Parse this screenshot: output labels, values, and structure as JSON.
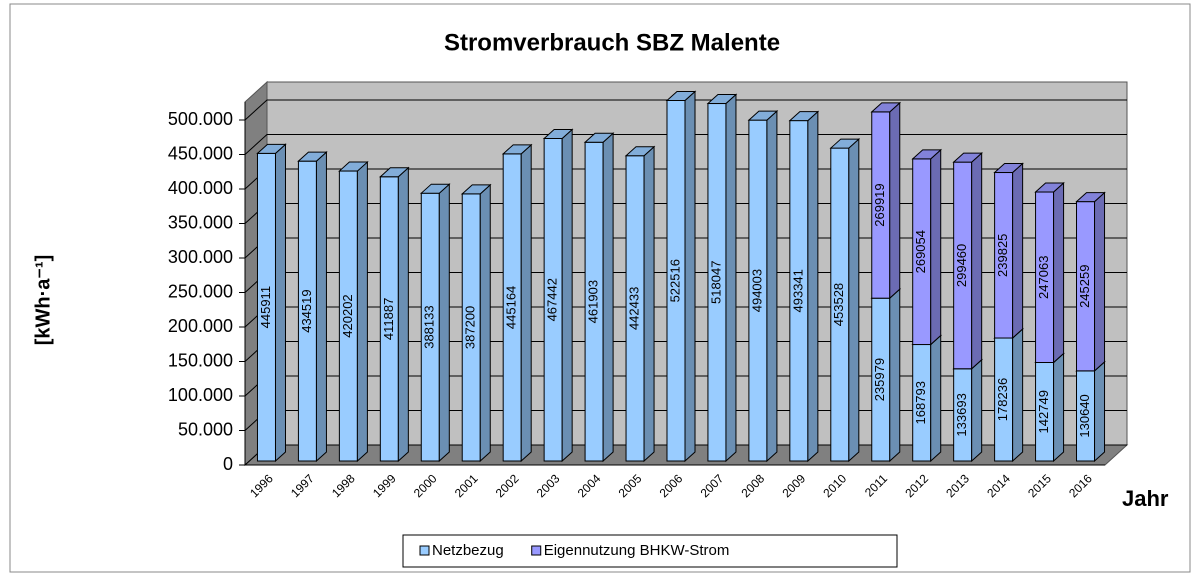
{
  "chart_data": {
    "type": "bar3d_stacked",
    "title": "Stromverbrauch SBZ Malente",
    "y_label": "[kWh·a⁻¹]",
    "x_label": "Jahr",
    "categories": [
      "1996",
      "1997",
      "1998",
      "1999",
      "2000",
      "2001",
      "2002",
      "2003",
      "2004",
      "2005",
      "2006",
      "2007",
      "2008",
      "2009",
      "2010",
      "2011",
      "2012",
      "2013",
      "2014",
      "2015",
      "2016"
    ],
    "series": [
      {
        "name": "Netzbezug",
        "color": "#99ccff",
        "values": [
          445911,
          434519,
          420202,
          411887,
          388133,
          387200,
          445164,
          467442,
          461903,
          442433,
          522516,
          518047,
          494003,
          493341,
          453528,
          235979,
          168793,
          133693,
          178236,
          142749,
          130640
        ]
      },
      {
        "name": "Eigennutzung BHKW-Strom",
        "color": "#9999ff",
        "values": [
          null,
          null,
          null,
          null,
          null,
          null,
          null,
          null,
          null,
          null,
          null,
          null,
          null,
          null,
          null,
          269919,
          269054,
          299460,
          239825,
          247063,
          245259
        ]
      }
    ],
    "ylim": [
      0,
      500000
    ],
    "yticks": [
      0,
      {
        "value": 50000,
        "label": "50.000"
      },
      {
        "value": 100000,
        "label": "100.000"
      },
      {
        "value": 150000,
        "label": "150.000"
      },
      {
        "value": 200000,
        "label": "200.000"
      },
      {
        "value": 250000,
        "label": "250.000"
      },
      {
        "value": 300000,
        "label": "300.000"
      },
      {
        "value": 350000,
        "label": "350.000"
      },
      {
        "value": 400000,
        "label": "400.000"
      },
      {
        "value": 450000,
        "label": "450.000"
      },
      {
        "value": 500000,
        "label": "500.000"
      }
    ],
    "grid": true,
    "legend": "bottom"
  }
}
